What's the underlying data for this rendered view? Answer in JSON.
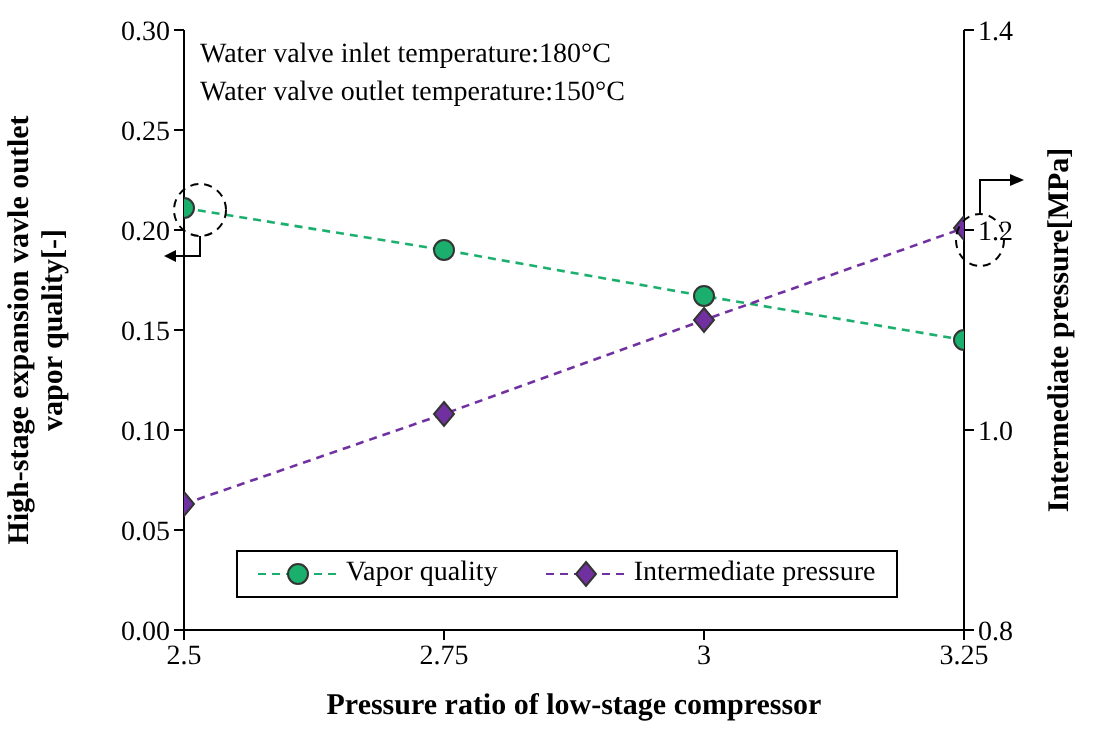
{
  "chart_data": {
    "type": "line",
    "xlabel": "Pressure ratio of low-stage compressor",
    "ylabel": "High-stage expansion vavle outlet vapor quality[-]",
    "y2label": "Intermediate pressure[MPa]",
    "annotations": [
      "Water valve inlet temperature:180°C",
      "Water valve outlet temperature:150°C"
    ],
    "x": [
      2.5,
      2.75,
      3,
      3.25
    ],
    "series": [
      {
        "name": "Vapor quality",
        "color": "#1aaf6c",
        "values": [
          0.211,
          0.19,
          0.167,
          0.145
        ],
        "marker": "circle"
      },
      {
        "name": "Intermediate pressure",
        "color": "#7030a0",
        "values": [
          0.926,
          1.016,
          1.11,
          1.202
        ],
        "marker": "diamond",
        "axis": "y2"
      }
    ],
    "xlim": [
      2.5,
      3.25
    ],
    "xticks": [
      2.5,
      2.75,
      3,
      3.25
    ],
    "ylim": [
      0,
      0.3
    ],
    "yticks": [
      {
        "value": 0,
        "label": "0.00"
      },
      0.05,
      {
        "value": 0.1,
        "label": "0.10"
      },
      0.15,
      {
        "value": 0.2,
        "label": "0.20"
      },
      0.25,
      {
        "value": 0.3,
        "label": "0.30"
      }
    ],
    "y2lim": [
      0.8,
      1.4
    ],
    "y2ticks": [
      0.8,
      {
        "value": 1,
        "label": "1.0"
      },
      1.2,
      1.4
    ],
    "grid": false,
    "legend": "bottom",
    "line_style": "dashed"
  }
}
